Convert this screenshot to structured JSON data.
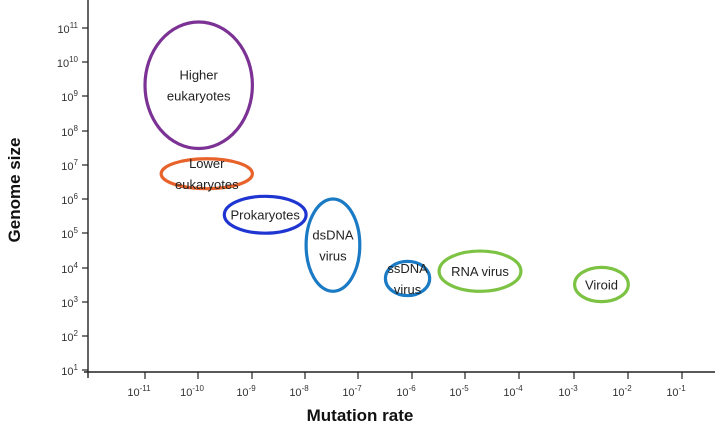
{
  "chart_data": {
    "type": "scatter",
    "xlabel": "Mutation rate",
    "ylabel": "Genome size",
    "x_scale": "log",
    "y_scale": "log",
    "x_ticks": [
      {
        "base": "10",
        "exp": "-11"
      },
      {
        "base": "10",
        "exp": "-10"
      },
      {
        "base": "10",
        "exp": "-9"
      },
      {
        "base": "10",
        "exp": "-8"
      },
      {
        "base": "10",
        "exp": "-7"
      },
      {
        "base": "10",
        "exp": "-6"
      },
      {
        "base": "10",
        "exp": "-5"
      },
      {
        "base": "10",
        "exp": "-4"
      },
      {
        "base": "10",
        "exp": "-3"
      },
      {
        "base": "10",
        "exp": "-2"
      },
      {
        "base": "10",
        "exp": "-1"
      }
    ],
    "y_ticks": [
      {
        "base": "10",
        "exp": "1"
      },
      {
        "base": "10",
        "exp": "2"
      },
      {
        "base": "10",
        "exp": "3"
      },
      {
        "base": "10",
        "exp": "4"
      },
      {
        "base": "10",
        "exp": "5"
      },
      {
        "base": "10",
        "exp": "6"
      },
      {
        "base": "10",
        "exp": "7"
      },
      {
        "base": "10",
        "exp": "8"
      },
      {
        "base": "10",
        "exp": "9"
      },
      {
        "base": "10",
        "exp": "10"
      },
      {
        "base": "10",
        "exp": "11"
      }
    ],
    "groups": [
      {
        "lines": [
          "Higher",
          "eukaryotes"
        ],
        "x_range": [
          1e-11,
          1e-09
        ],
        "y_range": [
          30000000.0,
          150000000000.0
        ],
        "color": "#7b3294"
      },
      {
        "lines": [
          "Lower",
          "eukaryotes"
        ],
        "x_range": [
          2e-11,
          1e-09
        ],
        "y_range": [
          2000000.0,
          15000000.0
        ],
        "color": "#e8632b"
      },
      {
        "lines": [
          "Prokaryotes"
        ],
        "x_range": [
          3e-10,
          1e-08
        ],
        "y_range": [
          100000.0,
          1200000.0
        ],
        "color": "#1f35d1"
      },
      {
        "lines": [
          "dsDNA",
          "virus"
        ],
        "x_range": [
          1e-08,
          1e-07
        ],
        "y_range": [
          2000.0,
          1000000.0
        ],
        "color": "#1a7ac4"
      },
      {
        "lines": [
          "ssDNA",
          "virus"
        ],
        "x_range": [
          3e-07,
          2e-06
        ],
        "y_range": [
          1500.0,
          15000.0
        ],
        "color": "#1a7ac4"
      },
      {
        "lines": [
          "RNA virus"
        ],
        "x_range": [
          3e-06,
          0.0001
        ],
        "y_range": [
          2000.0,
          30000.0
        ],
        "color": "#7cc243"
      },
      {
        "lines": [
          "Viroid"
        ],
        "x_range": [
          0.001,
          0.01
        ],
        "y_range": [
          1000.0,
          10000.0
        ],
        "color": "#7cc243"
      }
    ],
    "grid": false,
    "legend": "none"
  }
}
